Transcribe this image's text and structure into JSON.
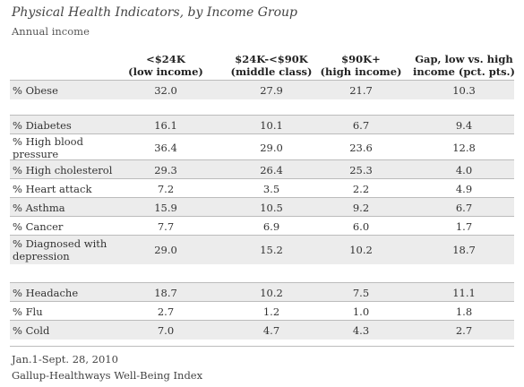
{
  "header": {
    "title": "Physical Health Indicators, by Income Group",
    "subtitle": "Annual income"
  },
  "chart_data": {
    "type": "table",
    "columns": [
      "<$24K\n(low income)",
      "$24K-<$90K\n(middle class)",
      "$90K+\n(high income)",
      "Gap, low vs. high\nincome (pct. pts.)"
    ],
    "rows": [
      {
        "label": "% Obese",
        "values": [
          "32.0",
          "27.9",
          "21.7",
          "10.3"
        ]
      },
      {
        "label": "% Diabetes",
        "values": [
          "16.1",
          "10.1",
          "6.7",
          "9.4"
        ]
      },
      {
        "label": "% High blood\npressure",
        "values": [
          "36.4",
          "29.0",
          "23.6",
          "12.8"
        ]
      },
      {
        "label": "% High cholesterol",
        "values": [
          "29.3",
          "26.4",
          "25.3",
          "4.0"
        ]
      },
      {
        "label": "% Heart attack",
        "values": [
          "7.2",
          "3.5",
          "2.2",
          "4.9"
        ]
      },
      {
        "label": "% Asthma",
        "values": [
          "15.9",
          "10.5",
          "9.2",
          "6.7"
        ]
      },
      {
        "label": "% Cancer",
        "values": [
          "7.7",
          "6.9",
          "6.0",
          "1.7"
        ]
      },
      {
        "label": "% Diagnosed with\ndepression",
        "values": [
          "29.0",
          "15.2",
          "10.2",
          "18.7"
        ]
      },
      {
        "label": "% Headache",
        "values": [
          "18.7",
          "10.2",
          "7.5",
          "11.1"
        ]
      },
      {
        "label": "% Flu",
        "values": [
          "2.7",
          "1.2",
          "1.0",
          "1.8"
        ]
      },
      {
        "label": "% Cold",
        "values": [
          "7.0",
          "4.7",
          "4.3",
          "2.7"
        ]
      }
    ]
  },
  "footer": {
    "date_range": "Jan.1-Sept. 28, 2010",
    "source": "Gallup-Healthways Well-Being Index"
  },
  "colors": {
    "shade": "#ececec",
    "rule": "#bcbcbc"
  }
}
